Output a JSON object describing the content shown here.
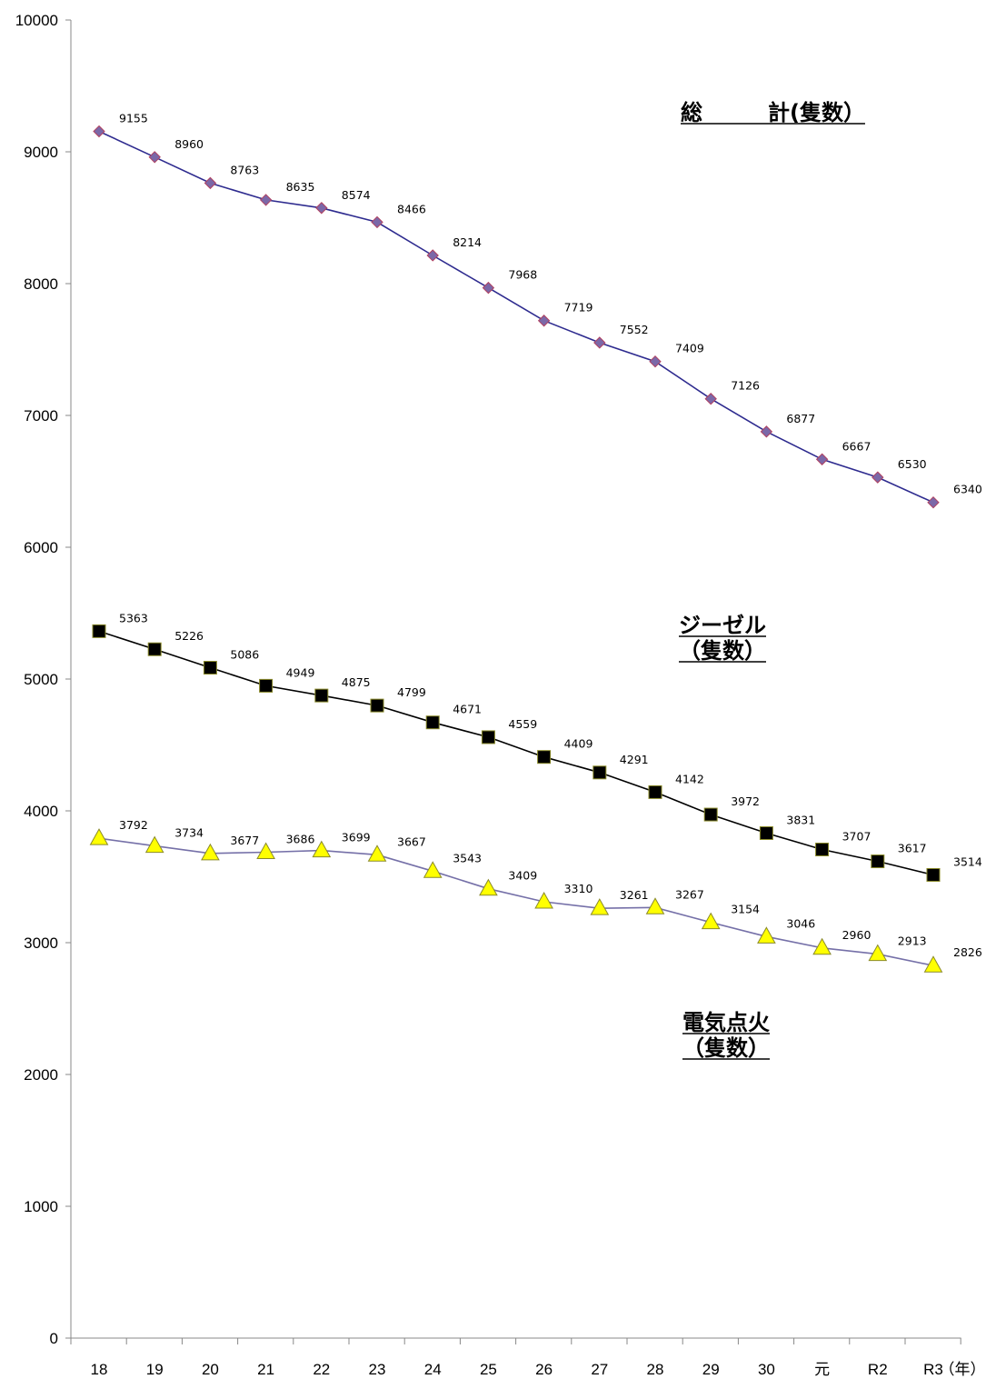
{
  "chart_data": {
    "type": "line",
    "categories": [
      "18",
      "19",
      "20",
      "21",
      "22",
      "23",
      "24",
      "25",
      "26",
      "27",
      "28",
      "29",
      "30",
      "元",
      "R2",
      "R3"
    ],
    "x_unit_label": "（年）",
    "ylim": [
      0,
      10000
    ],
    "yticks": [
      0,
      1000,
      2000,
      3000,
      4000,
      5000,
      6000,
      7000,
      8000,
      9000,
      10000
    ],
    "grid": false,
    "series": [
      {
        "name": "総　　　計(隻数）",
        "name_lines": [
          "総　　　計(隻数）"
        ],
        "marker": "diamond",
        "line_color": "#2e2b8f",
        "marker_fill": "#7b68a8",
        "marker_stroke": "#b04060",
        "values": [
          9155,
          8960,
          8763,
          8635,
          8574,
          8466,
          8214,
          7968,
          7719,
          7552,
          7409,
          7126,
          6877,
          6667,
          6530,
          6340
        ]
      },
      {
        "name": "ジーゼル（隻数）",
        "name_lines": [
          "ジーゼル",
          "（隻数）"
        ],
        "marker": "square",
        "line_color": "#000000",
        "marker_fill": "#000000",
        "marker_stroke": "#8a8a2a",
        "values": [
          5363,
          5226,
          5086,
          4949,
          4875,
          4799,
          4671,
          4559,
          4409,
          4291,
          4142,
          3972,
          3831,
          3707,
          3617,
          3514
        ]
      },
      {
        "name": "電気点火（隻数）",
        "name_lines": [
          "電気点火",
          "（隻数）"
        ],
        "marker": "triangle",
        "line_color": "#7570a8",
        "marker_fill": "#ffff00",
        "marker_stroke": "#8a8a2a",
        "values": [
          3792,
          3734,
          3677,
          3686,
          3699,
          3667,
          3543,
          3409,
          3310,
          3261,
          3267,
          3154,
          3046,
          2960,
          2913,
          2826
        ]
      }
    ]
  }
}
